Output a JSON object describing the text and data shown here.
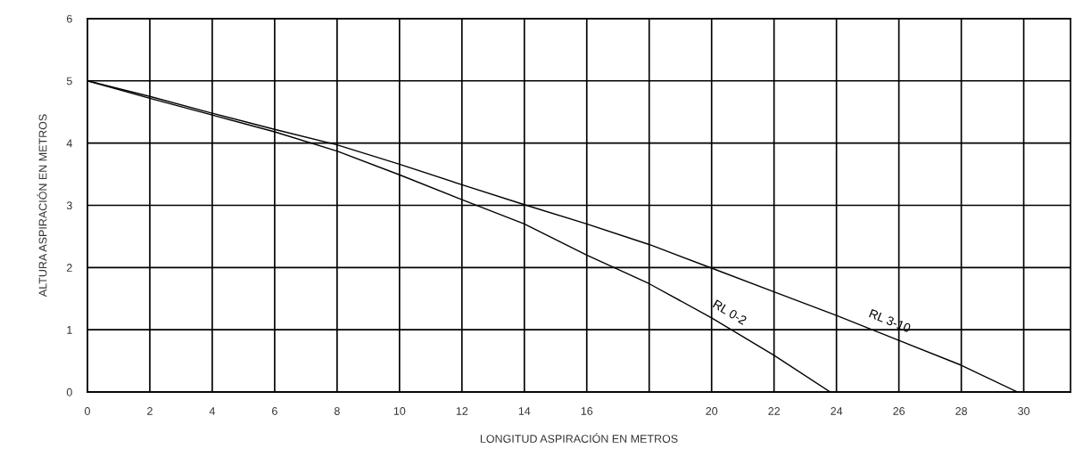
{
  "chart_data": {
    "type": "line",
    "xlabel": "LONGITUD ASPIRACIÓN EN METROS",
    "ylabel": "ALTURA ASPIRACIÓN EN METROS",
    "xlim": [
      0,
      31.5
    ],
    "ylim": [
      0,
      6
    ],
    "xticks": [
      0,
      2,
      4,
      6,
      8,
      10,
      12,
      14,
      16,
      {
        "value": 18,
        "label": null
      },
      20,
      22,
      24,
      26,
      28,
      30
    ],
    "yticks": [
      0,
      1,
      2,
      3,
      4,
      5,
      6
    ],
    "grid": true,
    "legend": false,
    "marker": "none",
    "line_style": "solid",
    "series": [
      {
        "name": "RL 3-10",
        "color": "#000000",
        "x": [
          0,
          2,
          4,
          6,
          8,
          10,
          12,
          14,
          16,
          18,
          20,
          22,
          24,
          26,
          28,
          29.8
        ],
        "values": [
          5,
          4.75,
          4.48,
          4.22,
          3.97,
          3.66,
          3.33,
          3.01,
          2.7,
          2.37,
          1.99,
          1.61,
          1.23,
          0.83,
          0.43,
          0
        ]
      },
      {
        "name": "RL 0-2",
        "color": "#000000",
        "x": [
          0,
          2,
          4,
          6,
          8,
          10,
          12,
          14,
          16,
          18,
          20,
          22,
          23.8
        ],
        "values": [
          5,
          4.72,
          4.45,
          4.18,
          3.87,
          3.49,
          3.09,
          2.7,
          2.2,
          1.74,
          1.19,
          0.59,
          0
        ]
      }
    ]
  }
}
